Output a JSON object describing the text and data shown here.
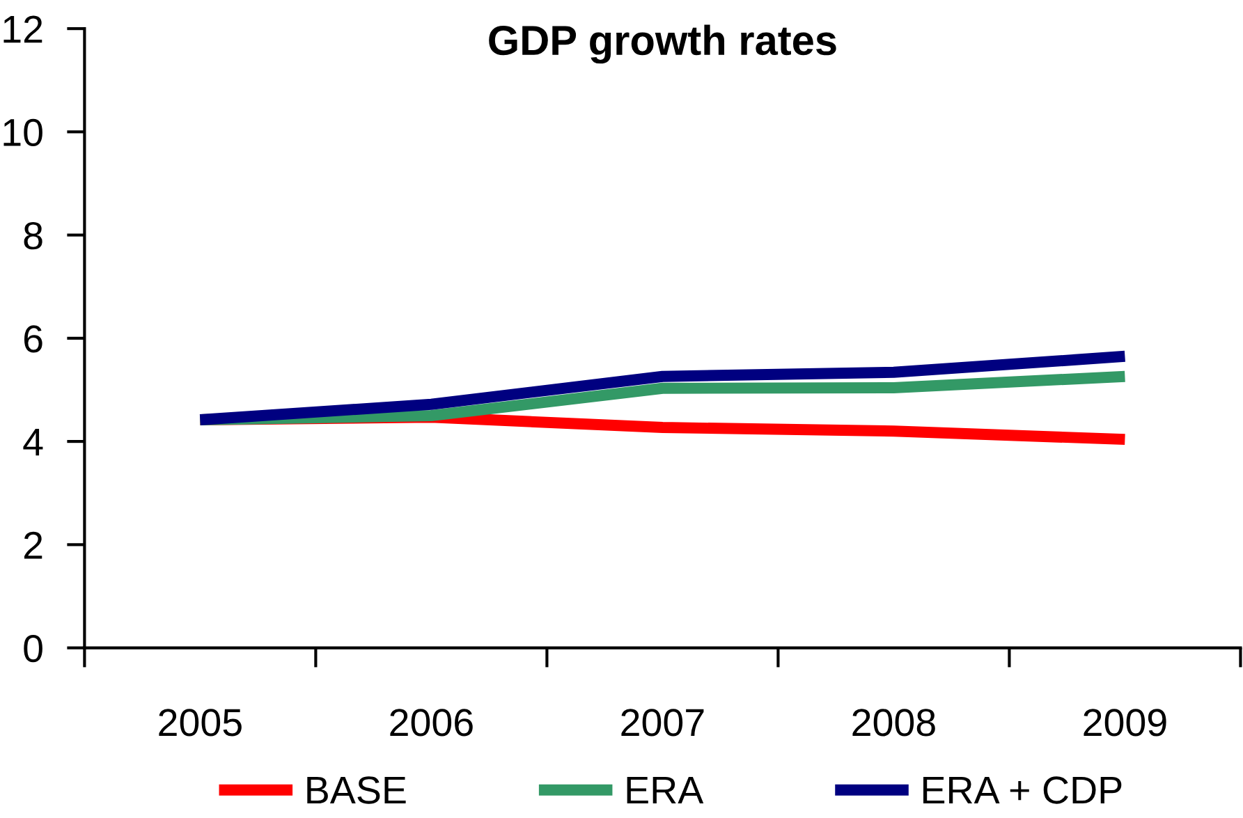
{
  "chart_data": {
    "type": "line",
    "title": "GDP growth rates",
    "categories": [
      "2005",
      "2006",
      "2007",
      "2008",
      "2009"
    ],
    "series": [
      {
        "name": "BASE",
        "color": "#ff0000",
        "values": [
          4.42,
          4.47,
          4.27,
          4.2,
          4.04
        ]
      },
      {
        "name": "ERA",
        "color": "#339966",
        "values": [
          4.42,
          4.5,
          5.03,
          5.04,
          5.26
        ]
      },
      {
        "name": "ERA + CDP",
        "color": "#000080",
        "values": [
          4.42,
          4.72,
          5.26,
          5.34,
          5.65
        ]
      }
    ],
    "ylim": [
      0,
      12
    ],
    "yticks": [
      0,
      2,
      4,
      6,
      8,
      10,
      12
    ],
    "grid": false,
    "legend": "bottom",
    "marker": "none",
    "line_style": "solid"
  }
}
